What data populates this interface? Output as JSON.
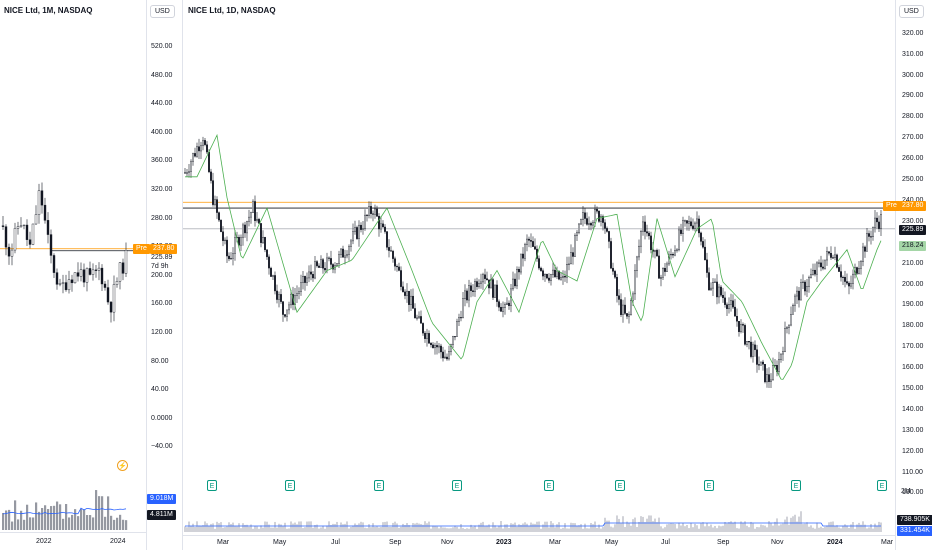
{
  "left": {
    "title": "NICE Ltd, 1M, NASDAQ",
    "currency": "USD",
    "price_axis": [
      "520.00",
      "480.00",
      "440.00",
      "400.00",
      "360.00",
      "320.00",
      "280.00",
      "240.00",
      "200.00",
      "160.00",
      "120.00",
      "80.00",
      "40.00",
      "0.0000",
      "−40.00"
    ],
    "pre_label": "Pre",
    "pre_price": "237.80",
    "last_price": "225.89",
    "countdown": "7d 9h",
    "volume_labels": [
      "9.018M",
      "4.811M"
    ],
    "time_axis": [
      "2022",
      "2024"
    ]
  },
  "right": {
    "title": "NICE Ltd, 1D, NASDAQ",
    "currency": "USD",
    "price_axis": [
      "320.00",
      "310.00",
      "300.00",
      "290.00",
      "280.00",
      "270.00",
      "260.00",
      "250.00",
      "240.00",
      "230.00",
      "210.00",
      "200.00",
      "190.00",
      "180.00",
      "170.00",
      "160.00",
      "150.00",
      "140.00",
      "130.00",
      "120.00",
      "110.00",
      "100.00"
    ],
    "pre_label": "Pre",
    "pre_price": "237.80",
    "last_price": "225.89",
    "ma_price": "218.24",
    "volume_labels": [
      "738.905K",
      "331.454K"
    ],
    "volume_axis": "2M",
    "time_axis": [
      "Mar",
      "May",
      "Jul",
      "Sep",
      "Nov",
      "2023",
      "Mar",
      "May",
      "Jul",
      "Sep",
      "Nov",
      "2024",
      "Mar"
    ],
    "earnings_marker": "E"
  },
  "colors": {
    "up": "#089981",
    "down": "#131722",
    "ma": "#4caf50",
    "pre": "#ff9800",
    "volume": "#9598a1",
    "volume_ma": "#2962ff"
  }
}
